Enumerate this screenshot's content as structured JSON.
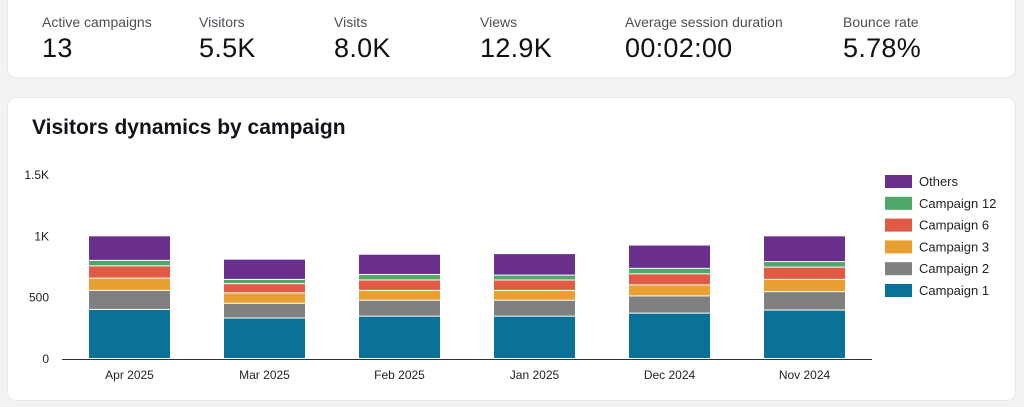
{
  "kpis": [
    {
      "label": "Active campaigns",
      "value": "13"
    },
    {
      "label": "Visitors",
      "value": "5.5K"
    },
    {
      "label": "Visits",
      "value": "8.0K"
    },
    {
      "label": "Views",
      "value": "12.9K"
    },
    {
      "label": "Average session duration",
      "value": "00:02:00"
    },
    {
      "label": "Bounce rate",
      "value": "5.78%"
    }
  ],
  "chart_data": {
    "type": "bar",
    "stacked": true,
    "title": "Visitors dynamics by campaign",
    "categories": [
      "Apr 2025",
      "Mar 2025",
      "Feb 2025",
      "Jan 2025",
      "Dec 2024",
      "Nov 2024"
    ],
    "ylim": [
      0,
      1500
    ],
    "yticks": [
      {
        "value": 0,
        "label": "0"
      },
      {
        "value": 500,
        "label": "500"
      },
      {
        "value": 1000,
        "label": "1K"
      },
      {
        "value": 1500,
        "label": "1.5K"
      }
    ],
    "series": [
      {
        "name": "Campaign 1",
        "color": "#0a7199",
        "values": [
          400,
          330,
          345,
          345,
          370,
          395
        ]
      },
      {
        "name": "Campaign 2",
        "color": "#808080",
        "values": [
          155,
          120,
          130,
          130,
          140,
          150
        ]
      },
      {
        "name": "Campaign 3",
        "color": "#e9a030",
        "values": [
          100,
          85,
          80,
          80,
          90,
          100
        ]
      },
      {
        "name": "Campaign 6",
        "color": "#e05a45",
        "values": [
          100,
          75,
          85,
          85,
          90,
          100
        ]
      },
      {
        "name": "Campaign 12",
        "color": "#4ea86a",
        "values": [
          45,
          35,
          45,
          40,
          45,
          45
        ]
      },
      {
        "name": "Others",
        "color": "#6a2f8c",
        "values": [
          200,
          165,
          165,
          175,
          190,
          210
        ]
      }
    ],
    "legend_position": "right",
    "legend_order": [
      "Others",
      "Campaign 12",
      "Campaign 6",
      "Campaign 3",
      "Campaign 2",
      "Campaign 1"
    ]
  }
}
